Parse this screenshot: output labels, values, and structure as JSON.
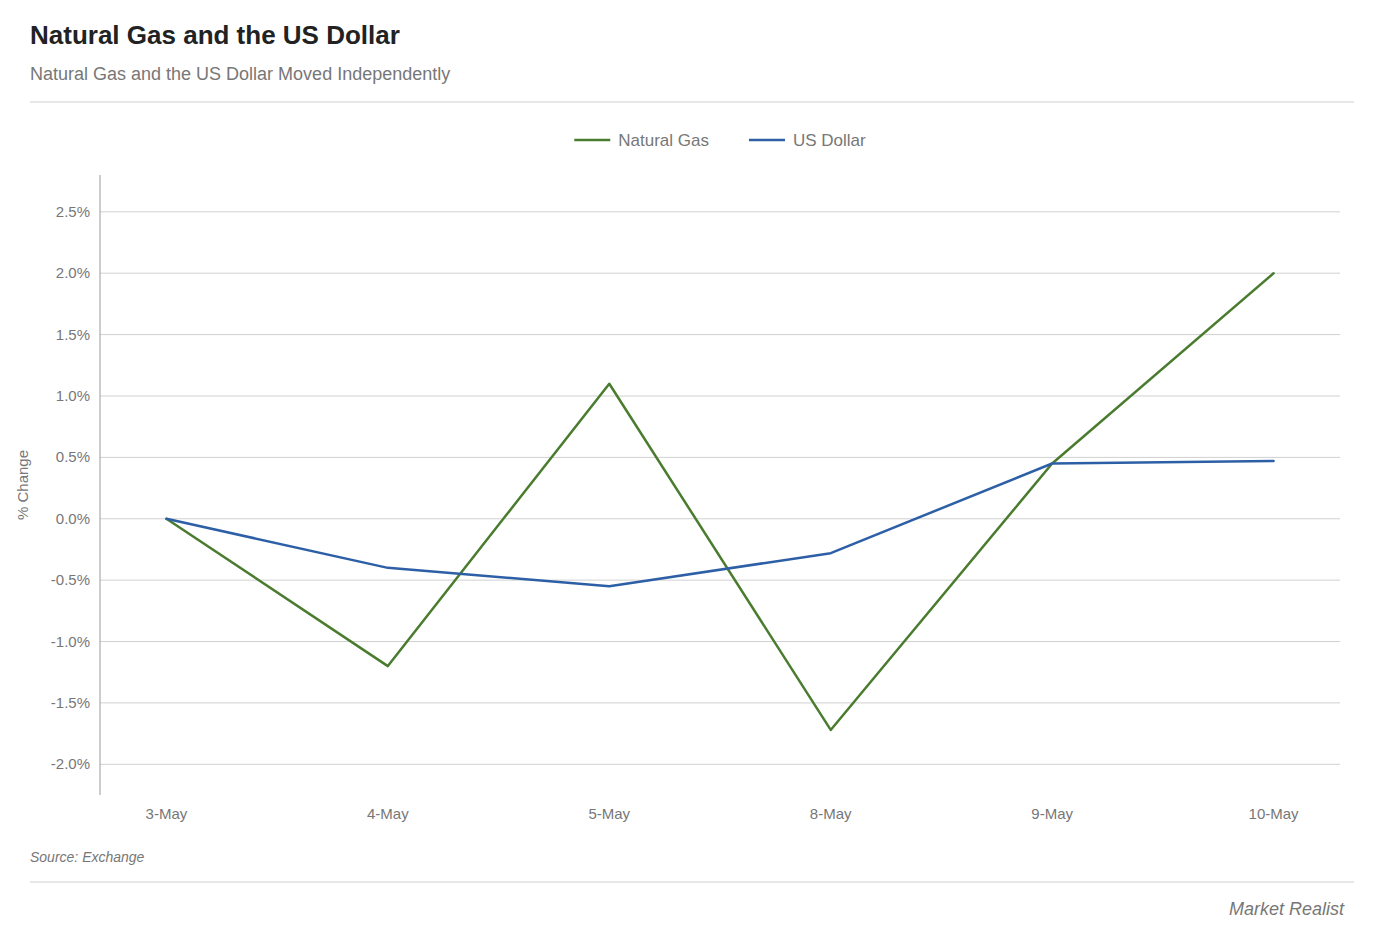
{
  "chart_data": {
    "type": "line",
    "title": "Natural Gas and the US Dollar",
    "subtitle": "Natural Gas and the US Dollar Moved Independently",
    "y_label": "% Change",
    "annotations": [
      "Source: Exchange",
      "Market Realist"
    ],
    "categories": [
      "3-May",
      "4-May",
      "5-May",
      "8-May",
      "9-May",
      "10-May"
    ],
    "series": [
      {
        "name": "Natural Gas",
        "color": "#4a7c2f",
        "values": [
          0.0,
          -1.2,
          1.1,
          -1.72,
          0.45,
          2.0
        ]
      },
      {
        "name": "US Dollar",
        "color": "#2d5fa6",
        "values": [
          0.0,
          -0.4,
          -0.55,
          -0.28,
          0.45,
          0.47
        ]
      }
    ],
    "ylim": [
      -2.25,
      2.8
    ],
    "yticks": [
      {
        "value": -2.0,
        "label": "-2.0%"
      },
      {
        "value": -1.5,
        "label": "-1.5%"
      },
      {
        "value": -1.0,
        "label": "-1.0%"
      },
      {
        "value": -0.5,
        "label": "-0.5%"
      },
      {
        "value": 0.0,
        "label": "0.0%"
      },
      {
        "value": 0.5,
        "label": "0.5%"
      },
      {
        "value": 1.0,
        "label": "1.0%"
      },
      {
        "value": 1.5,
        "label": "1.5%"
      },
      {
        "value": 2.0,
        "label": "2.0%"
      },
      {
        "value": 2.5,
        "label": "2.5%"
      }
    ],
    "grid": true,
    "legend": "top"
  }
}
